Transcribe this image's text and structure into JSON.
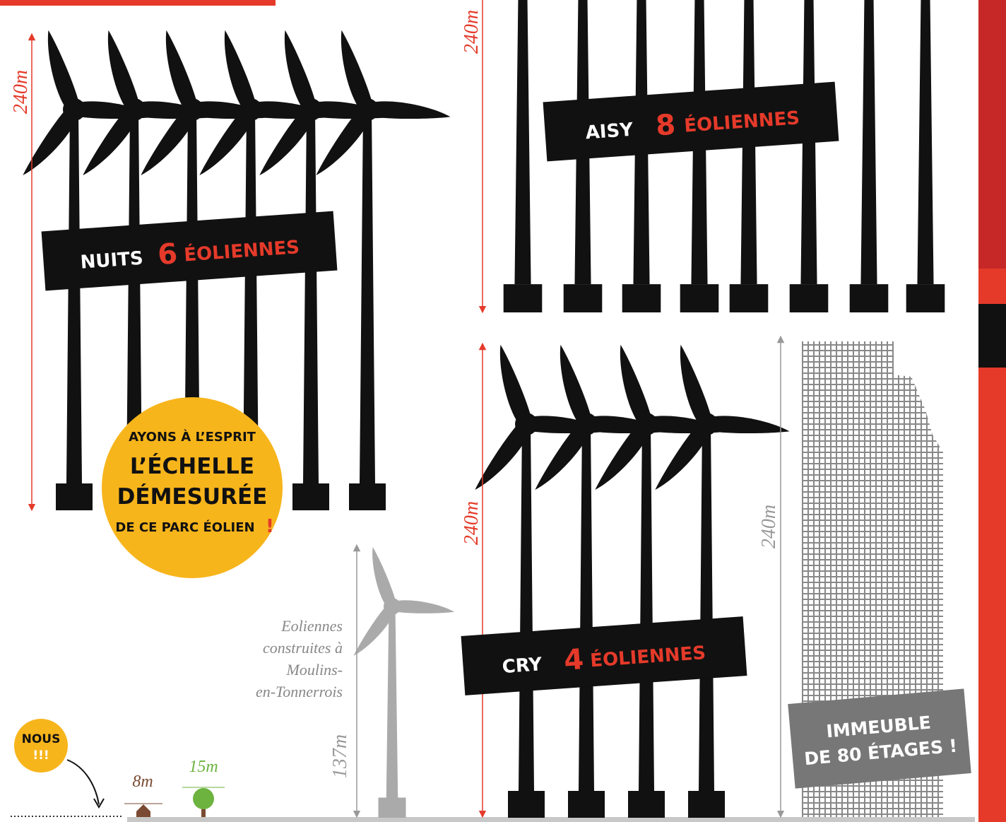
{
  "panels": {
    "nuits": {
      "height": "240m",
      "name": "NUITS",
      "count": "6",
      "unit": "ÉOLIENNES"
    },
    "aisy": {
      "height": "240m",
      "name": "AISY",
      "count": "8",
      "unit": "ÉOLIENNES"
    },
    "cry": {
      "height": "240m",
      "name": "CRY",
      "count": "4",
      "unit": "ÉOLIENNES"
    }
  },
  "callout": {
    "line1": "AYONS À L’ESPRIT",
    "line2": "L’ÉCHELLE",
    "line3": "DÉMESURÉE",
    "line4": "DE CE PARC ÉOLIEN",
    "exclaim": "!"
  },
  "existing": {
    "caption": [
      "Eoliennes",
      "construites à",
      "Moulins-",
      "en-Tonnerrois"
    ],
    "height": "137m"
  },
  "building": {
    "height": "240m",
    "label": [
      "IMMEUBLE",
      "DE 80 ÉTAGES !"
    ]
  },
  "scale": {
    "us": [
      "NOUS",
      "!!!"
    ],
    "house": "8m",
    "tree": "15m"
  }
}
